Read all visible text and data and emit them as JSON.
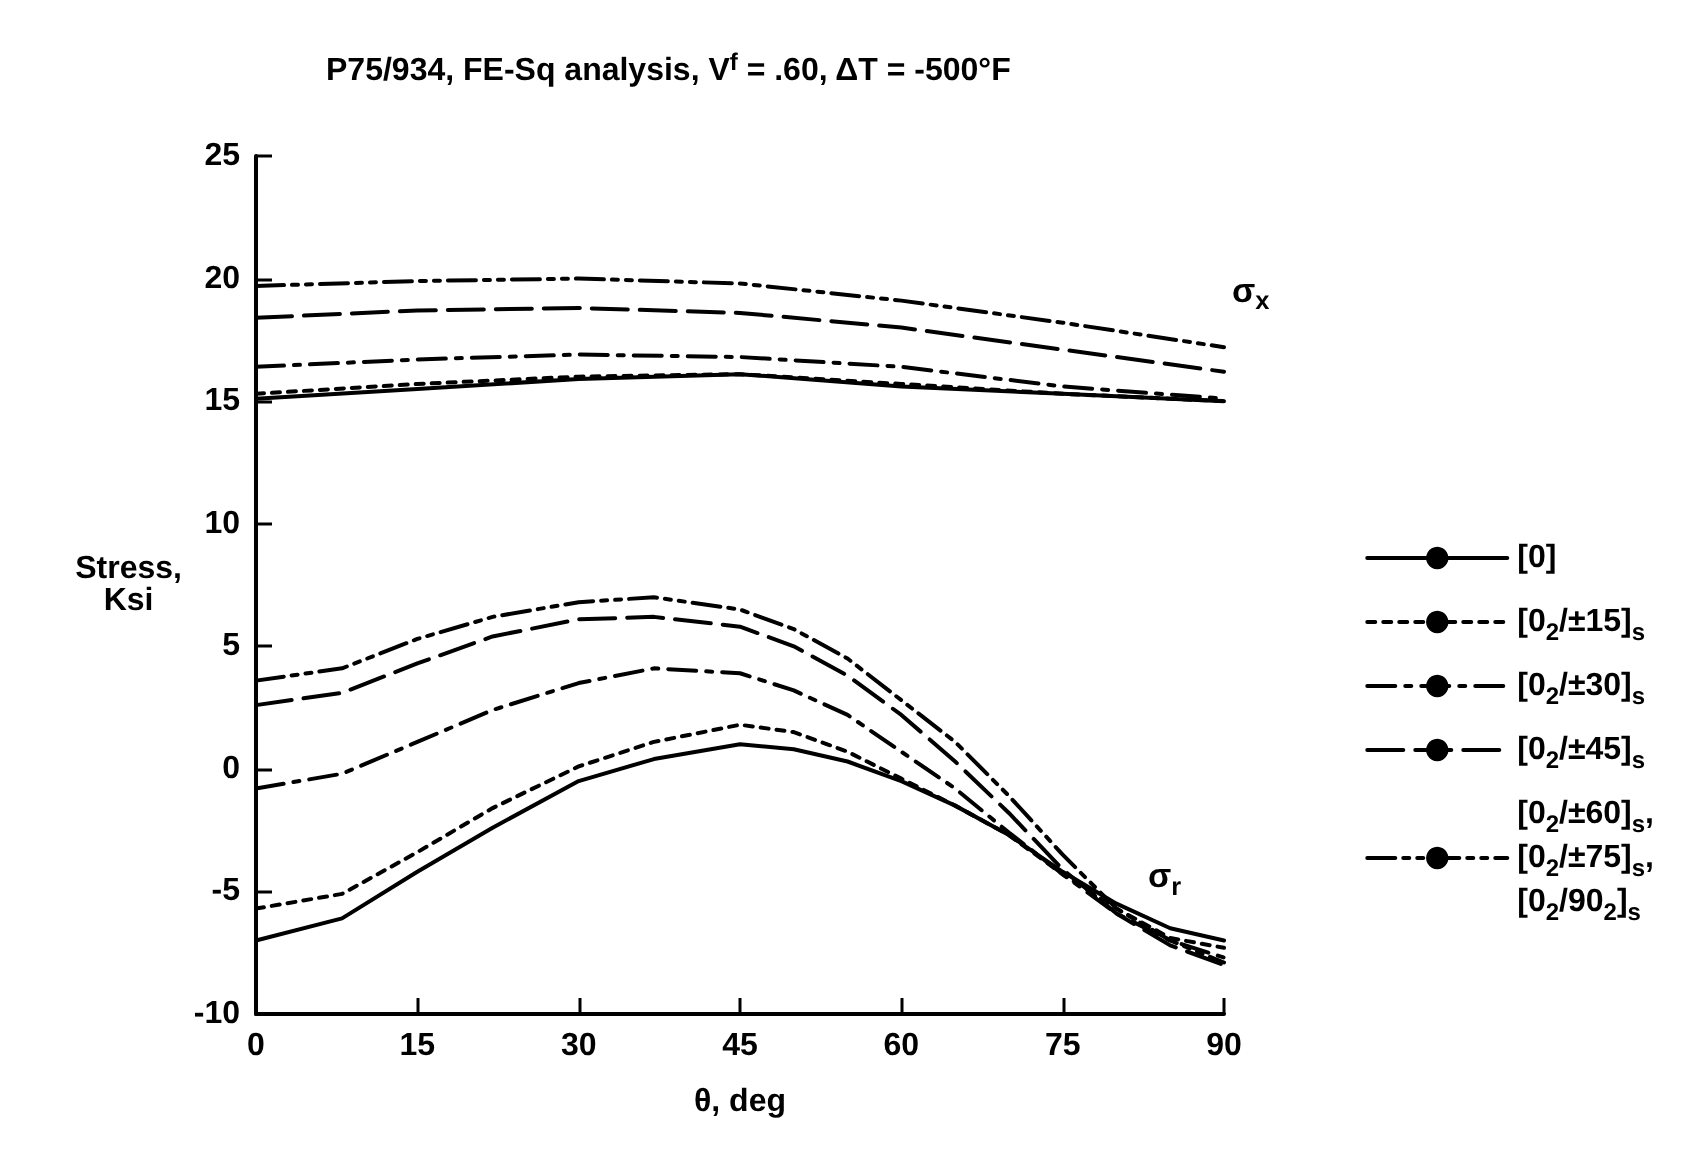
{
  "chart_data": {
    "type": "line",
    "title": "P75/934, FE-Sq analysis, V$^{f}$ = .60, ΔT = -500°F",
    "xlabel": "θ, deg",
    "ylabel": "Stress,\nKsi",
    "x": [
      0,
      8,
      15,
      22,
      30,
      37,
      45,
      50,
      55,
      60,
      65,
      70,
      75,
      80,
      85,
      90
    ],
    "xlim": [
      0,
      90
    ],
    "xticks": [
      0,
      15,
      30,
      45,
      60,
      75,
      90
    ],
    "ylim": [
      -10,
      25
    ],
    "yticks": [
      -10,
      -5,
      0,
      5,
      10,
      15,
      20,
      25
    ],
    "grid": false,
    "legend": "right",
    "marker": "none",
    "annotations": [
      "σ$_{x}$",
      "σ$_{r}$"
    ],
    "series": [
      {
        "name": "[0]",
        "color": "#000000",
        "line_style": "solid",
        "x": [
          0,
          15,
          30,
          45,
          60,
          75,
          90
        ],
        "values": [
          15.1,
          15.5,
          15.9,
          16.1,
          15.6,
          15.3,
          15.0
        ]
      },
      {
        "name": "[0$_{2}$/±15]$_{s}$",
        "color": "#000000",
        "line_style": "dotted",
        "x": [
          0,
          15,
          30,
          45,
          60,
          75,
          90
        ],
        "values": [
          15.3,
          15.7,
          16.0,
          16.1,
          15.7,
          15.3,
          15.0
        ]
      },
      {
        "name": "[0$_{2}$/±30]$_{s}$",
        "color": "#000000",
        "line_style": "dashdot",
        "x": [
          0,
          15,
          30,
          45,
          60,
          75,
          90
        ],
        "values": [
          16.4,
          16.7,
          16.9,
          16.8,
          16.4,
          15.6,
          15.1
        ]
      },
      {
        "name": "[0$_{2}$/±45]$_{s}$",
        "color": "#000000",
        "line_style": "longdash",
        "x": [
          0,
          15,
          30,
          45,
          60,
          75,
          90
        ],
        "values": [
          18.4,
          18.7,
          18.8,
          18.6,
          18.0,
          17.1,
          16.2
        ]
      },
      {
        "name": "[0$_{2}$/±60]$_{s}$,\n[0$_{2}$/±75]$_{s}$,\n[0$_{2}$/90$_{2}$]$_{s}$",
        "color": "#000000",
        "line_style": "dashdotdot",
        "x": [
          0,
          15,
          30,
          45,
          60,
          75,
          90
        ],
        "values": [
          19.7,
          19.9,
          20.0,
          19.8,
          19.1,
          18.2,
          17.2
        ]
      },
      {
        "color": "#000000",
        "line_style": "solid",
        "values": [
          -7.0,
          -6.1,
          -4.2,
          -2.4,
          -0.5,
          0.4,
          1.0,
          0.8,
          0.3,
          -0.5,
          -1.5,
          -2.7,
          -4.2,
          -5.5,
          -6.5,
          -7.0
        ]
      },
      {
        "color": "#000000",
        "line_style": "dotted",
        "values": [
          -5.7,
          -5.1,
          -3.4,
          -1.6,
          0.1,
          1.1,
          1.8,
          1.5,
          0.7,
          -0.4,
          -1.5,
          -2.7,
          -4.3,
          -5.7,
          -6.9,
          -7.3
        ]
      },
      {
        "color": "#000000",
        "line_style": "dashdot",
        "values": [
          -0.8,
          -0.2,
          1.1,
          2.4,
          3.5,
          4.1,
          3.9,
          3.2,
          2.2,
          0.7,
          -0.8,
          -2.6,
          -4.3,
          -5.9,
          -7.0,
          -7.7
        ]
      },
      {
        "color": "#000000",
        "line_style": "longdash",
        "values": [
          2.6,
          3.1,
          4.3,
          5.4,
          6.1,
          6.2,
          5.8,
          5.0,
          3.8,
          2.2,
          0.3,
          -1.8,
          -4.1,
          -5.9,
          -7.2,
          -8.0
        ]
      },
      {
        "color": "#000000",
        "line_style": "dashdotdot",
        "values": [
          3.6,
          4.1,
          5.3,
          6.2,
          6.8,
          7.0,
          6.5,
          5.7,
          4.5,
          2.8,
          1.1,
          -1.1,
          -3.5,
          -5.7,
          -7.0,
          -7.9
        ]
      }
    ]
  }
}
